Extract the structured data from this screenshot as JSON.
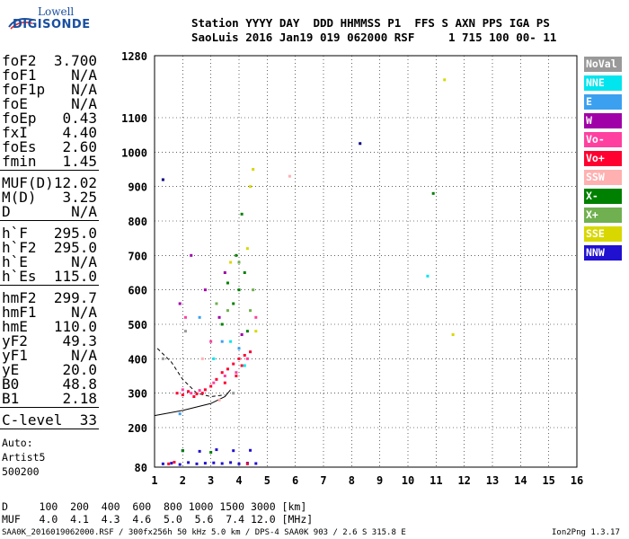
{
  "logo": {
    "line1": "Lowell",
    "line2": "DIGISONDE"
  },
  "header": {
    "row1": "Station YYYY DAY  DDD HHMMSS P1  FFS S AXN PPS IGA PS",
    "row2": "SaoLuis 2016 Jan19 019 062000 RSF     1 715 100 00- 11"
  },
  "params": {
    "group1": [
      {
        "k": "foF2",
        "v": "3.700"
      },
      {
        "k": "foF1",
        "v": "N/A"
      },
      {
        "k": "foF1p",
        "v": "N/A"
      },
      {
        "k": "foE",
        "v": "N/A"
      },
      {
        "k": "foEp",
        "v": "0.43"
      },
      {
        "k": "fxI",
        "v": "4.40"
      },
      {
        "k": "foEs",
        "v": "2.60"
      },
      {
        "k": "fmin",
        "v": "1.45"
      }
    ],
    "group2": [
      {
        "k": "MUF(D)",
        "v": "12.02"
      },
      {
        "k": "M(D)",
        "v": "3.25"
      },
      {
        "k": "D",
        "v": "N/A"
      }
    ],
    "group3": [
      {
        "k": "h`F",
        "v": "295.0"
      },
      {
        "k": "h`F2",
        "v": "295.0"
      },
      {
        "k": "h`E",
        "v": "N/A"
      },
      {
        "k": "h`Es",
        "v": "115.0"
      }
    ],
    "group4": [
      {
        "k": "hmF2",
        "v": "299.7"
      },
      {
        "k": "hmF1",
        "v": "N/A"
      },
      {
        "k": "hmE",
        "v": "110.0"
      },
      {
        "k": "yF2",
        "v": "49.3"
      },
      {
        "k": "yF1",
        "v": "N/A"
      },
      {
        "k": "yE",
        "v": "20.0"
      },
      {
        "k": "B0",
        "v": "48.8"
      },
      {
        "k": "B1",
        "v": "2.18"
      }
    ],
    "group5": [
      {
        "k": "C-level",
        "v": "33"
      }
    ],
    "auto": [
      "Auto:",
      "Artist5",
      "500200"
    ]
  },
  "legend": [
    {
      "label": "NoVal",
      "color": "#999999"
    },
    {
      "label": "NNE",
      "color": "#00e5ee"
    },
    {
      "label": "E",
      "color": "#3ba0f0"
    },
    {
      "label": "W",
      "color": "#a000a8"
    },
    {
      "label": "Vo-",
      "color": "#ff40a0"
    },
    {
      "label": "Vo+",
      "color": "#ff0030"
    },
    {
      "label": "SSW",
      "color": "#ffb0b0"
    },
    {
      "label": "X-",
      "color": "#008000"
    },
    {
      "label": "X+",
      "color": "#70b050"
    },
    {
      "label": "SSE",
      "color": "#d8d800"
    },
    {
      "label": "NNW",
      "color": "#2010d0"
    }
  ],
  "footer": {
    "row1": "D     100  200  400  600  800 1000 1500 3000 [km]",
    "row2": "MUF   4.0  4.1  4.3  4.6  5.0  5.6  7.4 12.0 [MHz]",
    "file": "SAA0K_2016019062000.RSF / 300fx256h 50 kHz 5.0 km / DPS-4 SAA0K 903 / 2.6 S 315.8 E",
    "version": "Ion2Png 1.3.17"
  },
  "chart_data": {
    "type": "scatter",
    "xlim": [
      1,
      16
    ],
    "ylim": [
      80,
      1280
    ],
    "xticks": [
      1,
      2,
      3,
      4,
      5,
      6,
      7,
      8,
      9,
      10,
      11,
      12,
      13,
      14,
      15,
      16
    ],
    "yticks": [
      80,
      200,
      300,
      400,
      500,
      600,
      700,
      800,
      900,
      1000,
      1100,
      1280
    ],
    "grid": true,
    "legend_position": "right",
    "series": [
      {
        "name": "NNW",
        "color": "#2010d0",
        "points": [
          [
            1.3,
            90
          ],
          [
            1.6,
            92
          ],
          [
            1.9,
            88
          ],
          [
            2.2,
            94
          ],
          [
            2.5,
            90
          ],
          [
            2.8,
            92
          ],
          [
            3.1,
            93
          ],
          [
            3.4,
            91
          ],
          [
            3.7,
            94
          ],
          [
            4.0,
            90
          ],
          [
            4.3,
            92
          ],
          [
            4.6,
            91
          ],
          [
            2.0,
            130
          ],
          [
            2.6,
            128
          ],
          [
            3.2,
            133
          ],
          [
            3.8,
            130
          ],
          [
            4.4,
            131
          ]
        ]
      },
      {
        "name": "Vo+",
        "color": "#ff0030",
        "points": [
          [
            1.8,
            300
          ],
          [
            2.0,
            295
          ],
          [
            2.2,
            305
          ],
          [
            2.5,
            298
          ],
          [
            2.8,
            310
          ],
          [
            3.0,
            320
          ],
          [
            3.2,
            340
          ],
          [
            3.4,
            360
          ],
          [
            3.6,
            370
          ],
          [
            3.8,
            385
          ],
          [
            4.0,
            400
          ],
          [
            4.2,
            410
          ],
          [
            4.4,
            420
          ],
          [
            3.5,
            330
          ],
          [
            3.9,
            350
          ],
          [
            4.1,
            380
          ],
          [
            2.4,
            290
          ],
          [
            2.7,
            300
          ],
          [
            1.5,
            90
          ],
          [
            1.7,
            95
          ],
          [
            4.3,
            90
          ]
        ]
      },
      {
        "name": "Vo-",
        "color": "#ff40a0",
        "points": [
          [
            2.0,
            310
          ],
          [
            2.3,
            300
          ],
          [
            2.6,
            308
          ],
          [
            3.1,
            330
          ],
          [
            3.5,
            350
          ],
          [
            3.9,
            360
          ],
          [
            4.3,
            400
          ],
          [
            4.6,
            520
          ],
          [
            3.0,
            450
          ],
          [
            2.1,
            520
          ]
        ]
      },
      {
        "name": "X-",
        "color": "#008000",
        "points": [
          [
            3.4,
            500
          ],
          [
            3.8,
            560
          ],
          [
            4.0,
            600
          ],
          [
            4.2,
            650
          ],
          [
            3.6,
            620
          ],
          [
            3.9,
            700
          ],
          [
            4.3,
            480
          ],
          [
            4.1,
            820
          ],
          [
            2.0,
            130
          ],
          [
            3.0,
            125
          ],
          [
            10.9,
            880
          ]
        ]
      },
      {
        "name": "X+",
        "color": "#70b050",
        "points": [
          [
            3.2,
            560
          ],
          [
            3.6,
            540
          ],
          [
            4.4,
            540
          ],
          [
            4.5,
            600
          ],
          [
            4.0,
            680
          ]
        ]
      },
      {
        "name": "SSE",
        "color": "#d8d800",
        "points": [
          [
            4.4,
            900
          ],
          [
            4.5,
            950
          ],
          [
            4.3,
            720
          ],
          [
            3.7,
            680
          ],
          [
            4.6,
            480
          ],
          [
            11.3,
            1210
          ],
          [
            11.6,
            470
          ]
        ]
      },
      {
        "name": "W",
        "color": "#a000a8",
        "points": [
          [
            2.3,
            700
          ],
          [
            2.8,
            600
          ],
          [
            3.3,
            520
          ],
          [
            3.5,
            650
          ],
          [
            4.1,
            470
          ],
          [
            1.9,
            560
          ]
        ]
      },
      {
        "name": "NNE",
        "color": "#00e5ee",
        "points": [
          [
            3.1,
            400
          ],
          [
            3.7,
            450
          ],
          [
            4.2,
            380
          ],
          [
            10.7,
            640
          ]
        ]
      },
      {
        "name": "E",
        "color": "#3ba0f0",
        "points": [
          [
            2.6,
            520
          ],
          [
            3.4,
            450
          ],
          [
            4.0,
            430
          ],
          [
            1.9,
            240
          ]
        ]
      },
      {
        "name": "SSW",
        "color": "#ffb0b0",
        "points": [
          [
            2.7,
            400
          ],
          [
            3.3,
            280
          ],
          [
            5.8,
            930
          ]
        ]
      },
      {
        "name": "NoVal",
        "color": "#999999",
        "points": [
          [
            1.3,
            400
          ],
          [
            2.1,
            480
          ],
          [
            3.8,
            300
          ]
        ]
      },
      {
        "name": "Other",
        "color": "#000080",
        "points": [
          [
            1.3,
            920
          ],
          [
            8.3,
            1025
          ]
        ]
      }
    ],
    "profile_line": [
      [
        1.0,
        235
      ],
      [
        2.0,
        250
      ],
      [
        3.0,
        270
      ],
      [
        3.5,
        290
      ],
      [
        3.7,
        310
      ]
    ],
    "trace_line": [
      [
        1.1,
        430
      ],
      [
        1.6,
        390
      ],
      [
        2.0,
        340
      ],
      [
        2.5,
        300
      ],
      [
        3.0,
        290
      ],
      [
        3.5,
        295
      ]
    ]
  }
}
